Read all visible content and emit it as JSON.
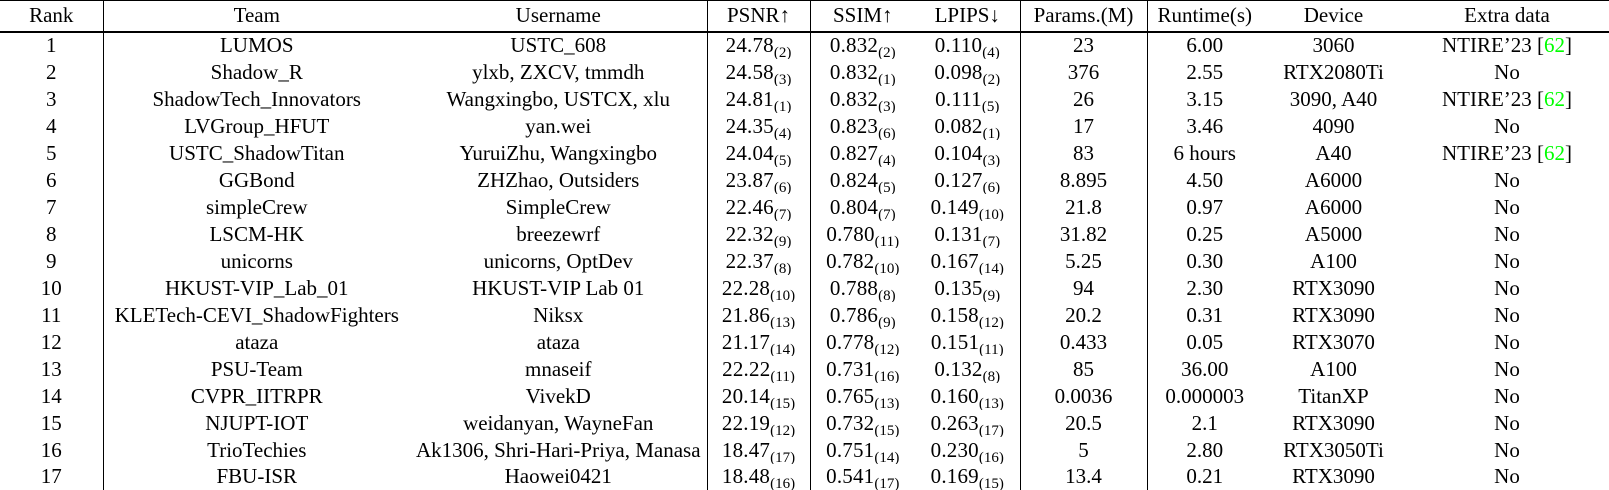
{
  "colors": {
    "citation_green": "#00FF00",
    "text": "#000000",
    "background": "#FFFFFF",
    "rule": "#000000"
  },
  "table": {
    "columns": [
      {
        "key": "rank",
        "label": "Rank"
      },
      {
        "key": "team",
        "label": "Team"
      },
      {
        "key": "username",
        "label": "Username"
      },
      {
        "key": "psnr",
        "label": "PSNR↑"
      },
      {
        "key": "ssim",
        "label": "SSIM↑"
      },
      {
        "key": "lpips",
        "label": "LPIPS↓"
      },
      {
        "key": "params",
        "label": "Params.(M)"
      },
      {
        "key": "runtime",
        "label": "Runtime(s)"
      },
      {
        "key": "device",
        "label": "Device"
      },
      {
        "key": "extra",
        "label": "Extra data"
      }
    ],
    "rows": [
      {
        "rank": "1",
        "team": "LUMOS",
        "username": "USTC_608",
        "psnr": {
          "value": "24.78",
          "rank": "(2)"
        },
        "ssim": {
          "value": "0.832",
          "rank": "(2)"
        },
        "lpips": {
          "value": "0.110",
          "rank": "(4)"
        },
        "params": "23",
        "runtime": "6.00",
        "device": "3060",
        "extra": {
          "text": "NTIRE’23",
          "citation": {
            "open": "[",
            "number": "62",
            "close": "]"
          }
        }
      },
      {
        "rank": "2",
        "team": "Shadow_R",
        "username": "ylxb, ZXCV, tmmdh",
        "psnr": {
          "value": "24.58",
          "rank": "(3)"
        },
        "ssim": {
          "value": "0.832",
          "rank": "(1)"
        },
        "lpips": {
          "value": "0.098",
          "rank": "(2)"
        },
        "params": "376",
        "runtime": "2.55",
        "device": "RTX2080Ti",
        "extra": {
          "text": "No"
        }
      },
      {
        "rank": "3",
        "team": "ShadowTech_Innovators",
        "username": "Wangxingbo, USTCX, xlu",
        "psnr": {
          "value": "24.81",
          "rank": "(1)"
        },
        "ssim": {
          "value": "0.832",
          "rank": "(3)"
        },
        "lpips": {
          "value": "0.111",
          "rank": "(5)"
        },
        "params": "26",
        "runtime": "3.15",
        "device": "3090, A40",
        "extra": {
          "text": "NTIRE’23",
          "citation": {
            "open": "[",
            "number": "62",
            "close": "]"
          }
        }
      },
      {
        "rank": "4",
        "team": "LVGroup_HFUT",
        "username": "yan.wei",
        "psnr": {
          "value": "24.35",
          "rank": "(4)"
        },
        "ssim": {
          "value": "0.823",
          "rank": "(6)"
        },
        "lpips": {
          "value": "0.082",
          "rank": "(1)"
        },
        "params": "17",
        "runtime": "3.46",
        "device": "4090",
        "extra": {
          "text": "No"
        }
      },
      {
        "rank": "5",
        "team": "USTC_ShadowTitan",
        "username": "YuruiZhu, Wangxingbo",
        "psnr": {
          "value": "24.04",
          "rank": "(5)"
        },
        "ssim": {
          "value": "0.827",
          "rank": "(4)"
        },
        "lpips": {
          "value": "0.104",
          "rank": "(3)"
        },
        "params": "83",
        "runtime": "6 hours",
        "device": "A40",
        "extra": {
          "text": "NTIRE’23",
          "citation": {
            "open": "[",
            "number": "62",
            "close": "]"
          }
        }
      },
      {
        "rank": "6",
        "team": "GGBond",
        "username": "ZHZhao, Outsiders",
        "psnr": {
          "value": "23.87",
          "rank": "(6)"
        },
        "ssim": {
          "value": "0.824",
          "rank": "(5)"
        },
        "lpips": {
          "value": "0.127",
          "rank": "(6)"
        },
        "params": "8.895",
        "runtime": "4.50",
        "device": "A6000",
        "extra": {
          "text": "No"
        }
      },
      {
        "rank": "7",
        "team": "simpleCrew",
        "username": "SimpleCrew",
        "psnr": {
          "value": "22.46",
          "rank": "(7)"
        },
        "ssim": {
          "value": "0.804",
          "rank": "(7)"
        },
        "lpips": {
          "value": "0.149",
          "rank": "(10)"
        },
        "params": "21.8",
        "runtime": "0.97",
        "device": "A6000",
        "extra": {
          "text": "No"
        }
      },
      {
        "rank": "8",
        "team": "LSCM-HK",
        "username": "breezewrf",
        "psnr": {
          "value": "22.32",
          "rank": "(9)"
        },
        "ssim": {
          "value": "0.780",
          "rank": "(11)"
        },
        "lpips": {
          "value": "0.131",
          "rank": "(7)"
        },
        "params": "31.82",
        "runtime": "0.25",
        "device": "A5000",
        "extra": {
          "text": "No"
        }
      },
      {
        "rank": "9",
        "team": "unicorns",
        "username": "unicorns, OptDev",
        "psnr": {
          "value": "22.37",
          "rank": "(8)"
        },
        "ssim": {
          "value": "0.782",
          "rank": "(10)"
        },
        "lpips": {
          "value": "0.167",
          "rank": "(14)"
        },
        "params": "5.25",
        "runtime": "0.30",
        "device": "A100",
        "extra": {
          "text": "No"
        }
      },
      {
        "rank": "10",
        "team": "HKUST-VIP_Lab_01",
        "username": "HKUST-VIP Lab 01",
        "psnr": {
          "value": "22.28",
          "rank": "(10)"
        },
        "ssim": {
          "value": "0.788",
          "rank": "(8)"
        },
        "lpips": {
          "value": "0.135",
          "rank": "(9)"
        },
        "params": "94",
        "runtime": "2.30",
        "device": "RTX3090",
        "extra": {
          "text": "No"
        }
      },
      {
        "rank": "11",
        "team": "KLETech-CEVI_ShadowFighters",
        "username": "Niksx",
        "psnr": {
          "value": "21.86",
          "rank": "(13)"
        },
        "ssim": {
          "value": "0.786",
          "rank": "(9)"
        },
        "lpips": {
          "value": "0.158",
          "rank": "(12)"
        },
        "params": "20.2",
        "runtime": "0.31",
        "device": "RTX3090",
        "extra": {
          "text": "No"
        }
      },
      {
        "rank": "12",
        "team": "ataza",
        "username": "ataza",
        "psnr": {
          "value": "21.17",
          "rank": "(14)"
        },
        "ssim": {
          "value": "0.778",
          "rank": "(12)"
        },
        "lpips": {
          "value": "0.151",
          "rank": "(11)"
        },
        "params": "0.433",
        "runtime": "0.05",
        "device": "RTX3070",
        "extra": {
          "text": "No"
        }
      },
      {
        "rank": "13",
        "team": "PSU-Team",
        "username": "mnaseif",
        "psnr": {
          "value": "22.22",
          "rank": "(11)"
        },
        "ssim": {
          "value": "0.731",
          "rank": "(16)"
        },
        "lpips": {
          "value": "0.132",
          "rank": "(8)"
        },
        "params": "85",
        "runtime": "36.00",
        "device": "A100",
        "extra": {
          "text": "No"
        }
      },
      {
        "rank": "14",
        "team": "CVPR_IITRPR",
        "username": "VivekD",
        "psnr": {
          "value": "20.14",
          "rank": "(15)"
        },
        "ssim": {
          "value": "0.765",
          "rank": "(13)"
        },
        "lpips": {
          "value": "0.160",
          "rank": "(13)"
        },
        "params": "0.0036",
        "runtime": "0.000003",
        "device": "TitanXP",
        "extra": {
          "text": "No"
        }
      },
      {
        "rank": "15",
        "team": "NJUPT-IOT",
        "username": "weidanyan, WayneFan",
        "psnr": {
          "value": "22.19",
          "rank": "(12)"
        },
        "ssim": {
          "value": "0.732",
          "rank": "(15)"
        },
        "lpips": {
          "value": "0.263",
          "rank": "(17)"
        },
        "params": "20.5",
        "runtime": "2.1",
        "device": "RTX3090",
        "extra": {
          "text": "No"
        }
      },
      {
        "rank": "16",
        "team": "TrioTechies",
        "username": "Ak1306, Shri-Hari-Priya, Manasa",
        "psnr": {
          "value": "18.47",
          "rank": "(17)"
        },
        "ssim": {
          "value": "0.751",
          "rank": "(14)"
        },
        "lpips": {
          "value": "0.230",
          "rank": "(16)"
        },
        "params": "5",
        "runtime": "2.80",
        "device": "RTX3050Ti",
        "extra": {
          "text": "No"
        }
      },
      {
        "rank": "17",
        "team": "FBU-ISR",
        "username": "Haowei0421",
        "psnr": {
          "value": "18.48",
          "rank": "(16)"
        },
        "ssim": {
          "value": "0.541",
          "rank": "(17)"
        },
        "lpips": {
          "value": "0.169",
          "rank": "(15)"
        },
        "params": "13.4",
        "runtime": "0.21",
        "device": "RTX3090",
        "extra": {
          "text": "No"
        }
      }
    ]
  }
}
